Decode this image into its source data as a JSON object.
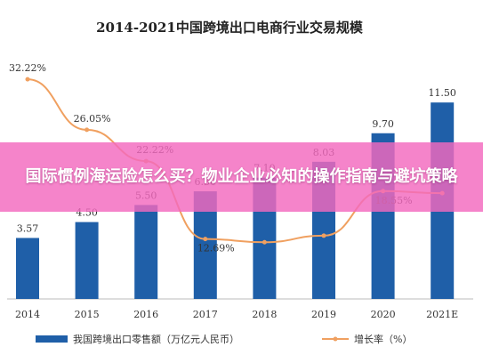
{
  "chart_data": {
    "type": "bar",
    "title": "2014-2021中国跨境出口电商行业交易规模",
    "categories": [
      "2014",
      "2015",
      "2016",
      "2017",
      "2018",
      "2019",
      "2020",
      "2021E"
    ],
    "series": [
      {
        "name": "我国跨境出口零售额（万亿元人民币）",
        "type": "bar",
        "color": "#1f5fa8",
        "values": [
          3.57,
          4.5,
          5.5,
          6.3,
          7.1,
          8.03,
          9.7,
          11.5
        ],
        "labels": [
          "3.57",
          "4.50",
          "5.50",
          "6.30",
          "7.10",
          "8.03",
          "9.70",
          "11.50"
        ]
      },
      {
        "name": "增长率（%）",
        "type": "line",
        "color": "#f0a060",
        "values": [
          32.22,
          26.05,
          22.22,
          12.69,
          12.3,
          13.1,
          18.55,
          18.3
        ],
        "labels": [
          "32.22%",
          "26.05%",
          "22.22%",
          "12.69%",
          "",
          "",
          "18.55%",
          ""
        ]
      }
    ],
    "legend_position": "bottom"
  },
  "banner": {
    "text": "国际惯例海运险怎么买？物业企业必知的操作指南与避坑策略"
  }
}
